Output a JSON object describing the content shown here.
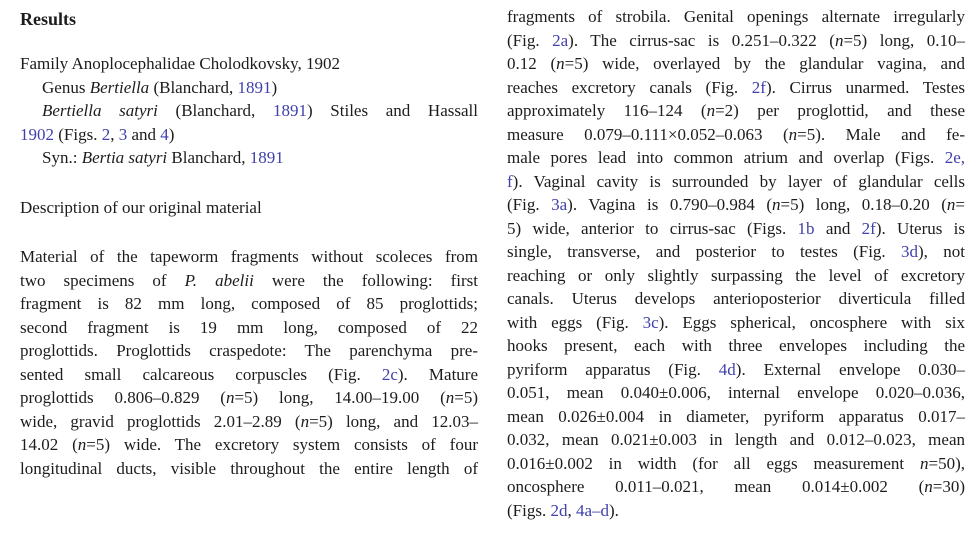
{
  "document": {
    "background": "#ffffff",
    "text_color": "#1c1c1c",
    "link_color": "#4040ac"
  },
  "left_column": {
    "heading": "Results",
    "taxonomy_lines": [
      {
        "justify": false,
        "indent": 0,
        "runs": [
          {
            "t": "Family Anoplocephalidae Cholodkovsky, 1902"
          }
        ]
      },
      {
        "justify": false,
        "indent": 22,
        "runs": [
          {
            "t": "Genus "
          },
          {
            "t": "Bertiella",
            "s": "i"
          },
          {
            "t": " (Blanchard, "
          },
          {
            "t": "1891",
            "s": "a"
          },
          {
            "t": ")"
          }
        ]
      },
      {
        "justify": true,
        "indent": 22,
        "runs": [
          {
            "t": "Bertiella satyri",
            "s": "i"
          },
          {
            "t": " (Blanchard, "
          },
          {
            "t": "1891",
            "s": "a"
          },
          {
            "t": ") Stiles and Hassall"
          }
        ]
      },
      {
        "justify": false,
        "indent": 0,
        "runs": [
          {
            "t": "1902",
            "s": "a"
          },
          {
            "t": " (Figs. "
          },
          {
            "t": "2",
            "s": "a"
          },
          {
            "t": ", "
          },
          {
            "t": "3",
            "s": "a"
          },
          {
            "t": " and "
          },
          {
            "t": "4",
            "s": "a"
          },
          {
            "t": ")"
          }
        ]
      },
      {
        "justify": false,
        "indent": 22,
        "runs": [
          {
            "t": "Syn.: "
          },
          {
            "t": "Bertia satyri",
            "s": "i"
          },
          {
            "t": " Blanchard, "
          },
          {
            "t": "1891",
            "s": "a"
          }
        ]
      }
    ],
    "subheading": "Description of our original material",
    "paragraph_lines": [
      {
        "justify": true,
        "runs": [
          {
            "t": "Material of the tapeworm fragments without scoleces from"
          }
        ]
      },
      {
        "justify": true,
        "runs": [
          {
            "t": "two specimens of "
          },
          {
            "t": "P. abelii",
            "s": "i"
          },
          {
            "t": " were the following: first"
          }
        ]
      },
      {
        "justify": true,
        "runs": [
          {
            "t": "fragment is 82 mm long, composed of 85 proglottids;"
          }
        ]
      },
      {
        "justify": true,
        "runs": [
          {
            "t": "second fragment is 19 mm long, composed of 22"
          }
        ]
      },
      {
        "justify": true,
        "runs": [
          {
            "t": "proglottids. Proglottids craspedote: The parenchyma pre-"
          }
        ]
      },
      {
        "justify": true,
        "runs": [
          {
            "t": "sented small calcareous corpuscles (Fig. "
          },
          {
            "t": "2c",
            "s": "a"
          },
          {
            "t": "). Mature"
          }
        ]
      },
      {
        "justify": true,
        "runs": [
          {
            "t": "proglottids 0.806–0.829 ("
          },
          {
            "t": "n",
            "s": "i"
          },
          {
            "t": "=5) long, 14.00–19.00 ("
          },
          {
            "t": "n",
            "s": "i"
          },
          {
            "t": "=5)"
          }
        ]
      },
      {
        "justify": true,
        "runs": [
          {
            "t": "wide, gravid proglottids 2.01–2.89 ("
          },
          {
            "t": "n",
            "s": "i"
          },
          {
            "t": "=5) long, and 12.03–"
          }
        ]
      },
      {
        "justify": true,
        "runs": [
          {
            "t": "14.02 ("
          },
          {
            "t": "n",
            "s": "i"
          },
          {
            "t": "=5) wide. The excretory system consists of four"
          }
        ]
      },
      {
        "justify": true,
        "runs": [
          {
            "t": "longitudinal ducts, visible throughout the entire length of"
          }
        ]
      }
    ]
  },
  "right_column": {
    "paragraph_lines": [
      {
        "justify": true,
        "runs": [
          {
            "t": "fragments of strobila. Genital openings alternate irregularly"
          }
        ]
      },
      {
        "justify": true,
        "runs": [
          {
            "t": "(Fig. "
          },
          {
            "t": "2a",
            "s": "a"
          },
          {
            "t": "). The cirrus-sac is 0.251–0.322 ("
          },
          {
            "t": "n",
            "s": "i"
          },
          {
            "t": "=5) long, 0.10–"
          }
        ]
      },
      {
        "justify": true,
        "runs": [
          {
            "t": "0.12 ("
          },
          {
            "t": "n",
            "s": "i"
          },
          {
            "t": "=5) wide, overlayed by the glandular vagina, and"
          }
        ]
      },
      {
        "justify": true,
        "runs": [
          {
            "t": "reaches excretory canals (Fig. "
          },
          {
            "t": "2f",
            "s": "a"
          },
          {
            "t": "). Cirrus unarmed. Testes"
          }
        ]
      },
      {
        "justify": true,
        "runs": [
          {
            "t": "approximately 116–124 ("
          },
          {
            "t": "n",
            "s": "i"
          },
          {
            "t": "=2) per proglottid, and these"
          }
        ]
      },
      {
        "justify": true,
        "runs": [
          {
            "t": "measure 0.079–0.111×0.052–0.063 ("
          },
          {
            "t": "n",
            "s": "i"
          },
          {
            "t": "=5). Male and fe-"
          }
        ]
      },
      {
        "justify": true,
        "runs": [
          {
            "t": "male pores lead into common atrium and overlap (Figs. "
          },
          {
            "t": "2e,",
            "s": "a"
          }
        ]
      },
      {
        "justify": true,
        "runs": [
          {
            "t": "f",
            "s": "a"
          },
          {
            "t": "). Vaginal cavity is surrounded by layer of glandular cells"
          }
        ]
      },
      {
        "justify": true,
        "runs": [
          {
            "t": "(Fig. "
          },
          {
            "t": "3a",
            "s": "a"
          },
          {
            "t": "). Vagina is 0.790–0.984 ("
          },
          {
            "t": "n",
            "s": "i"
          },
          {
            "t": "=5) long, 0.18–0.20 ("
          },
          {
            "t": "n",
            "s": "i"
          },
          {
            "t": "="
          }
        ]
      },
      {
        "justify": true,
        "runs": [
          {
            "t": "5) wide, anterior to cirrus-sac (Figs. "
          },
          {
            "t": "1b",
            "s": "a"
          },
          {
            "t": " and "
          },
          {
            "t": "2f",
            "s": "a"
          },
          {
            "t": "). Uterus is"
          }
        ]
      },
      {
        "justify": true,
        "runs": [
          {
            "t": "single, transverse, and posterior to testes (Fig. "
          },
          {
            "t": "3d",
            "s": "a"
          },
          {
            "t": "), not"
          }
        ]
      },
      {
        "justify": true,
        "runs": [
          {
            "t": "reaching or only slightly surpassing the level of excretory"
          }
        ]
      },
      {
        "justify": true,
        "runs": [
          {
            "t": "canals. Uterus develops anterioposterior diverticula filled"
          }
        ]
      },
      {
        "justify": true,
        "runs": [
          {
            "t": "with eggs (Fig. "
          },
          {
            "t": "3c",
            "s": "a"
          },
          {
            "t": "). Eggs spherical, oncosphere with six"
          }
        ]
      },
      {
        "justify": true,
        "runs": [
          {
            "t": "hooks present, each with three envelopes including the"
          }
        ]
      },
      {
        "justify": true,
        "runs": [
          {
            "t": "pyriform apparatus (Fig. "
          },
          {
            "t": "4d",
            "s": "a"
          },
          {
            "t": "). External envelope 0.030–"
          }
        ]
      },
      {
        "justify": true,
        "runs": [
          {
            "t": "0.051, mean 0.040±0.006, internal envelope 0.020–0.036,"
          }
        ]
      },
      {
        "justify": true,
        "runs": [
          {
            "t": "mean 0.026±0.004 in diameter, pyriform apparatus 0.017–"
          }
        ]
      },
      {
        "justify": true,
        "runs": [
          {
            "t": "0.032, mean 0.021±0.003 in length and 0.012–0.023, mean"
          }
        ]
      },
      {
        "justify": true,
        "runs": [
          {
            "t": "0.016±0.002 in width (for all eggs measurement "
          },
          {
            "t": "n",
            "s": "i"
          },
          {
            "t": "=50),"
          }
        ]
      },
      {
        "justify": true,
        "runs": [
          {
            "t": "oncosphere 0.011–0.021, mean 0.014±0.002 ("
          },
          {
            "t": "n",
            "s": "i"
          },
          {
            "t": "=30)"
          }
        ]
      },
      {
        "justify": false,
        "runs": [
          {
            "t": "(Figs. "
          },
          {
            "t": "2d",
            "s": "a"
          },
          {
            "t": ", "
          },
          {
            "t": "4a–d",
            "s": "a"
          },
          {
            "t": ")."
          }
        ]
      }
    ]
  }
}
